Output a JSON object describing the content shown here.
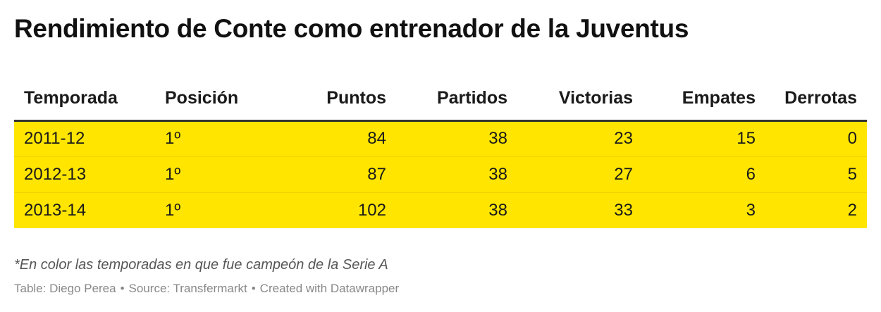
{
  "title": "Rendimiento de Conte como entrenador de la Juventus",
  "chart_data": {
    "type": "table",
    "columns": [
      "Temporada",
      "Posición",
      "Puntos",
      "Partidos",
      "Victorias",
      "Empates",
      "Derrotas"
    ],
    "rows": [
      [
        "2011-12",
        "1º",
        "84",
        "38",
        "23",
        "15",
        "0"
      ],
      [
        "2012-13",
        "1º",
        "87",
        "38",
        "27",
        "6",
        "5"
      ],
      [
        "2013-14",
        "1º",
        "102",
        "38",
        "33",
        "3",
        "2"
      ]
    ],
    "highlight_color": "#ffe500"
  },
  "note": "*En color las temporadas en que fue campeón de la Serie A",
  "footer": {
    "table_credit": "Table: Diego Perea",
    "source": "Source: Transfermarkt",
    "created": "Created with Datawrapper"
  }
}
